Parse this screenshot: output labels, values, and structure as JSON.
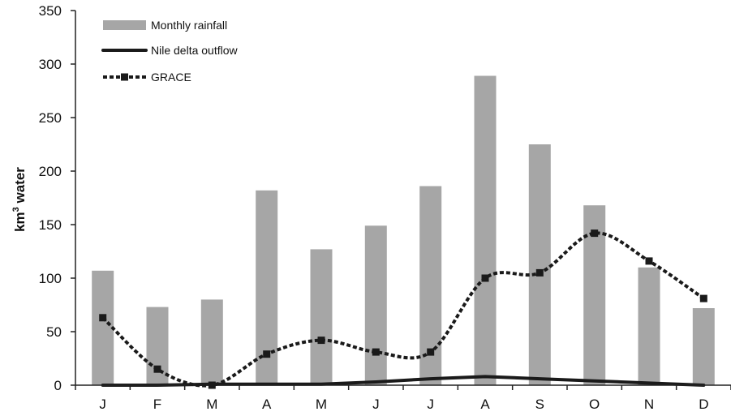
{
  "chart_data": {
    "type": "bar",
    "categories": [
      "J",
      "F",
      "M",
      "A",
      "M",
      "J",
      "J",
      "A",
      "S",
      "O",
      "N",
      "D"
    ],
    "ylim": [
      0,
      350
    ],
    "yticks": [
      0,
      50,
      100,
      150,
      200,
      250,
      300,
      350
    ],
    "ytick_labels": [
      "0",
      "50",
      "100",
      "150",
      "200",
      "250",
      "300",
      "350"
    ],
    "ylabel_main": "km",
    "ylabel_sup": "3",
    "ylabel_rest": " water",
    "xlabel": "",
    "title": "",
    "grid": false,
    "legend_position": "top-left",
    "series": [
      {
        "name": "Monthly rainfall",
        "kind": "bar",
        "color": "#a6a6a6",
        "values": [
          107,
          73,
          80,
          182,
          127,
          149,
          186,
          289,
          225,
          168,
          110,
          72
        ]
      },
      {
        "name": "Nile delta outflow",
        "kind": "line",
        "style": "solid",
        "color": "#1a1a1a",
        "values": [
          0,
          0,
          1,
          1,
          1,
          3,
          6,
          8,
          6,
          4,
          2,
          0
        ]
      },
      {
        "name": "GRACE",
        "kind": "line",
        "style": "dotted",
        "marker": "square",
        "color": "#1a1a1a",
        "values": [
          63,
          15,
          0,
          29,
          42,
          31,
          31,
          100,
          105,
          142,
          116,
          81
        ]
      }
    ]
  }
}
